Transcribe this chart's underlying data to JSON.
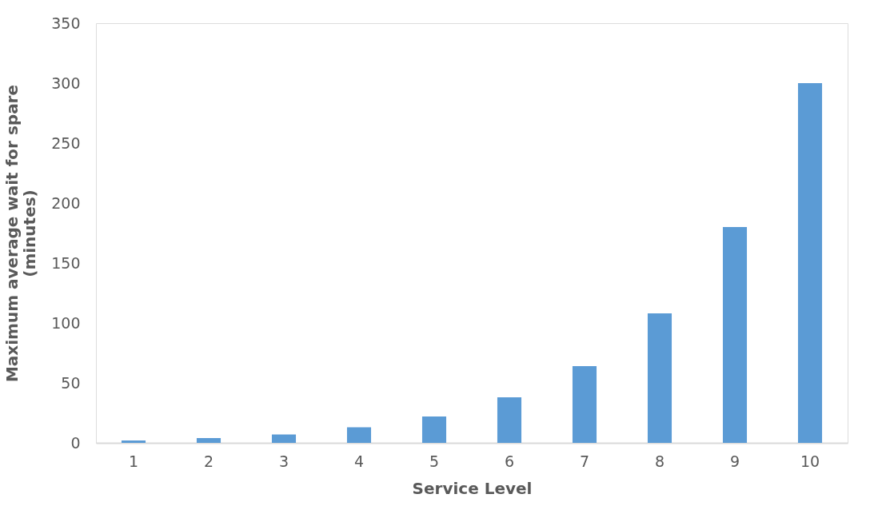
{
  "chart_data": {
    "type": "bar",
    "xlabel": "Service Level",
    "ylabel": "Maximum average wait for spare (minutes)",
    "categories": [
      "1",
      "2",
      "3",
      "4",
      "5",
      "6",
      "7",
      "8",
      "9",
      "10"
    ],
    "values": [
      2,
      4,
      7,
      13,
      22,
      38,
      64,
      108,
      180,
      300
    ],
    "color": "#5b9bd5",
    "ylim": [
      0,
      350
    ],
    "yticks": [
      0,
      50,
      100,
      150,
      200,
      250,
      300,
      350
    ],
    "grid": false
  }
}
